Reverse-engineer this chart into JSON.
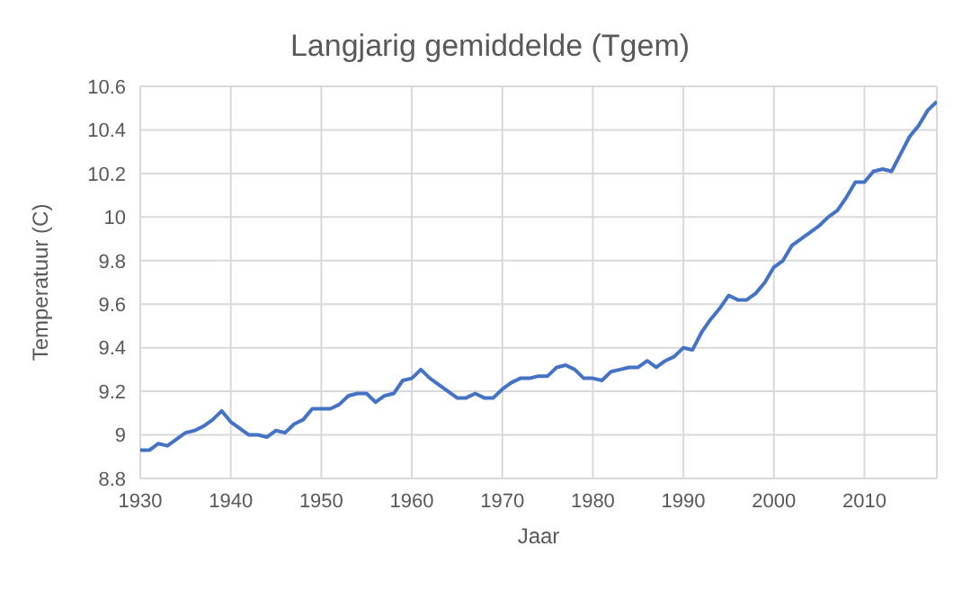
{
  "chart_data": {
    "type": "line",
    "title": "Langjarig gemiddelde (Tgem)",
    "xlabel": "Jaar",
    "ylabel": "Temperatuur  (C)",
    "x": [
      1930,
      1931,
      1932,
      1933,
      1934,
      1935,
      1936,
      1937,
      1938,
      1939,
      1940,
      1941,
      1942,
      1943,
      1944,
      1945,
      1946,
      1947,
      1948,
      1949,
      1950,
      1951,
      1952,
      1953,
      1954,
      1955,
      1956,
      1957,
      1958,
      1959,
      1960,
      1961,
      1962,
      1963,
      1964,
      1965,
      1966,
      1967,
      1968,
      1969,
      1970,
      1971,
      1972,
      1973,
      1974,
      1975,
      1976,
      1977,
      1978,
      1979,
      1980,
      1981,
      1982,
      1983,
      1984,
      1985,
      1986,
      1987,
      1988,
      1989,
      1990,
      1991,
      1992,
      1993,
      1994,
      1995,
      1996,
      1997,
      1998,
      1999,
      2000,
      2001,
      2002,
      2003,
      2004,
      2005,
      2006,
      2007,
      2008,
      2009,
      2010,
      2011,
      2012,
      2013,
      2014,
      2015,
      2016,
      2017,
      2018
    ],
    "series": [
      {
        "color": "#4472c4",
        "values": [
          8.93,
          8.93,
          8.96,
          8.95,
          8.98,
          9.01,
          9.02,
          9.04,
          9.07,
          9.11,
          9.06,
          9.03,
          9.0,
          9.0,
          8.99,
          9.02,
          9.01,
          9.05,
          9.07,
          9.12,
          9.12,
          9.12,
          9.14,
          9.18,
          9.19,
          9.19,
          9.15,
          9.18,
          9.19,
          9.25,
          9.26,
          9.3,
          9.26,
          9.23,
          9.2,
          9.17,
          9.17,
          9.19,
          9.17,
          9.17,
          9.21,
          9.24,
          9.26,
          9.26,
          9.27,
          9.27,
          9.31,
          9.32,
          9.3,
          9.26,
          9.26,
          9.25,
          9.29,
          9.3,
          9.31,
          9.31,
          9.34,
          9.31,
          9.34,
          9.36,
          9.4,
          9.39,
          9.47,
          9.53,
          9.58,
          9.64,
          9.62,
          9.62,
          9.65,
          9.7,
          9.77,
          9.8,
          9.87,
          9.9,
          9.93,
          9.96,
          10.0,
          10.03,
          10.09,
          10.16,
          10.16,
          10.21,
          10.22,
          10.21,
          10.29,
          10.37,
          10.42,
          10.49,
          10.53
        ]
      }
    ],
    "xlim": [
      1930,
      2018
    ],
    "xticks": [
      1930,
      1940,
      1950,
      1960,
      1970,
      1980,
      1990,
      2000,
      2010
    ],
    "ylim": [
      8.8,
      10.6
    ],
    "yticks": [
      8.8,
      9,
      9.2,
      9.4,
      9.6,
      9.8,
      10,
      10.2,
      10.4,
      10.6
    ],
    "grid": true,
    "marker": "none",
    "line_style": "solid"
  }
}
